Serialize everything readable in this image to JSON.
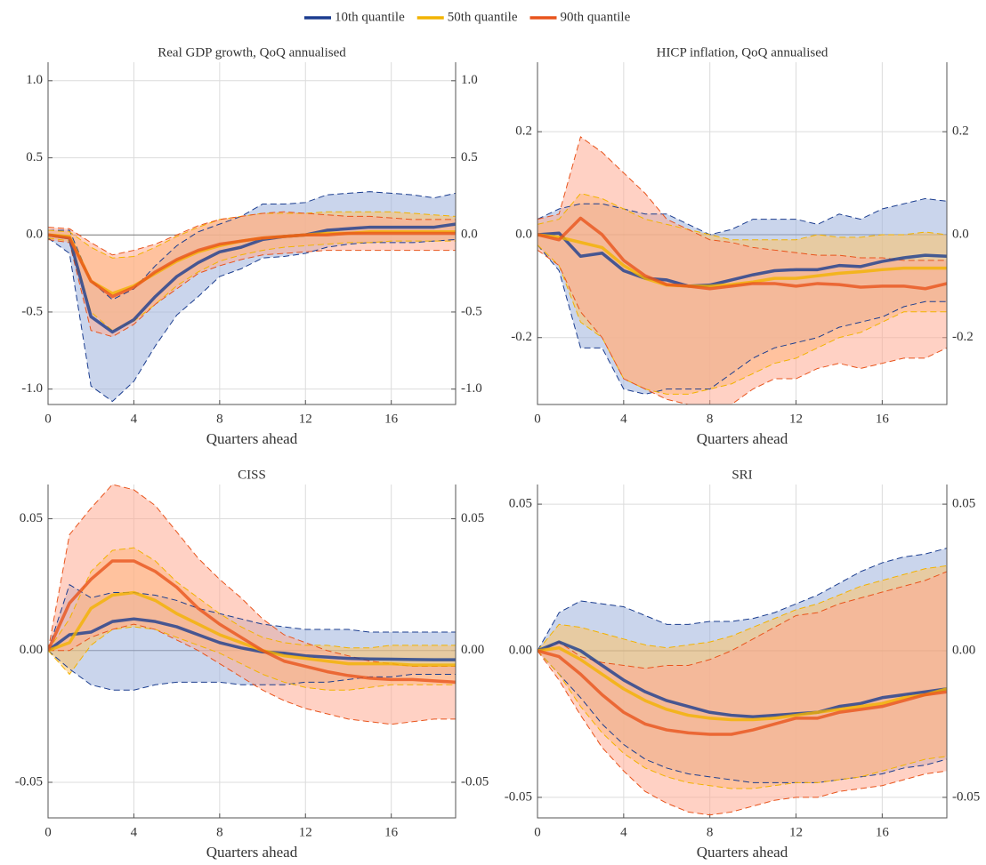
{
  "legend": [
    {
      "name": "10th quantile",
      "color": "#1b3d8f",
      "band_color": "#9fb3dd"
    },
    {
      "name": "50th quantile",
      "color": "#f2b300",
      "band_color": "#ffc266"
    },
    {
      "name": "90th quantile",
      "color": "#e8541c",
      "band_color": "#ffab94"
    }
  ],
  "chart_data": [
    {
      "type": "line",
      "title": "Real GDP growth, QoQ annualised",
      "x_label": "Quarters ahead",
      "x": [
        0,
        1,
        2,
        3,
        4,
        5,
        6,
        7,
        8,
        9,
        10,
        11,
        12,
        13,
        14,
        15,
        16,
        17,
        18,
        19
      ],
      "xlim": [
        0,
        19
      ],
      "xticks": [
        0,
        4,
        8,
        12,
        16
      ],
      "ylim": [
        -1.1,
        1.12
      ],
      "yticks": [
        {
          "value": 1,
          "label": "1.0"
        },
        0.5,
        {
          "value": 0,
          "label": "0.0"
        },
        -0.5,
        {
          "value": -1,
          "label": "-1.0"
        }
      ],
      "grid": true,
      "series": [
        {
          "values": [
            0,
            -0.02,
            -0.53,
            -0.63,
            -0.55,
            -0.4,
            -0.27,
            -0.18,
            -0.11,
            -0.08,
            -0.03,
            -0.01,
            0,
            0.03,
            0.04,
            0.05,
            0.05,
            0.05,
            0.05,
            0.07
          ],
          "lower": [
            -0.02,
            -0.12,
            -0.98,
            -1.08,
            -0.95,
            -0.72,
            -0.52,
            -0.4,
            -0.27,
            -0.22,
            -0.15,
            -0.14,
            -0.12,
            -0.08,
            -0.06,
            -0.05,
            -0.05,
            -0.05,
            -0.04,
            -0.03
          ],
          "upper": [
            0.03,
            0.03,
            -0.3,
            -0.42,
            -0.35,
            -0.2,
            -0.07,
            0.02,
            0.07,
            0.12,
            0.2,
            0.2,
            0.21,
            0.26,
            0.27,
            0.28,
            0.27,
            0.26,
            0.24,
            0.27
          ]
        },
        {
          "values": [
            0,
            -0.01,
            -0.3,
            -0.38,
            -0.33,
            -0.25,
            -0.17,
            -0.11,
            -0.07,
            -0.04,
            -0.02,
            -0.01,
            0,
            0.01,
            0.01,
            0.02,
            0.02,
            0.02,
            0.02,
            0.02
          ],
          "lower": [
            -0.02,
            -0.04,
            -0.5,
            -0.62,
            -0.56,
            -0.45,
            -0.33,
            -0.24,
            -0.17,
            -0.13,
            -0.1,
            -0.08,
            -0.07,
            -0.06,
            -0.05,
            -0.05,
            -0.04,
            -0.04,
            -0.04,
            -0.04
          ],
          "upper": [
            0.03,
            0.02,
            -0.08,
            -0.15,
            -0.14,
            -0.08,
            -0.01,
            0.05,
            0.1,
            0.12,
            0.14,
            0.14,
            0.14,
            0.15,
            0.15,
            0.15,
            0.15,
            0.14,
            0.13,
            0.12
          ]
        },
        {
          "values": [
            0,
            -0.02,
            -0.3,
            -0.4,
            -0.34,
            -0.24,
            -0.16,
            -0.1,
            -0.06,
            -0.04,
            -0.02,
            -0.01,
            0,
            0,
            0.01,
            0.01,
            0.01,
            0.01,
            0.01,
            0.01
          ],
          "lower": [
            -0.03,
            -0.05,
            -0.62,
            -0.66,
            -0.58,
            -0.45,
            -0.35,
            -0.25,
            -0.2,
            -0.16,
            -0.13,
            -0.12,
            -0.11,
            -0.1,
            -0.1,
            -0.1,
            -0.1,
            -0.1,
            -0.1,
            -0.1
          ],
          "upper": [
            0.05,
            0.04,
            -0.05,
            -0.13,
            -0.1,
            -0.06,
            0,
            0.06,
            0.1,
            0.12,
            0.14,
            0.15,
            0.14,
            0.13,
            0.12,
            0.12,
            0.11,
            0.1,
            0.1,
            0.1
          ]
        }
      ]
    },
    {
      "type": "line",
      "title": "HICP inflation, QoQ annualised",
      "x_label": "Quarters ahead",
      "x": [
        0,
        1,
        2,
        3,
        4,
        5,
        6,
        7,
        8,
        9,
        10,
        11,
        12,
        13,
        14,
        15,
        16,
        17,
        18,
        19
      ],
      "xlim": [
        0,
        19
      ],
      "xticks": [
        0,
        4,
        8,
        12,
        16
      ],
      "ylim": [
        -0.33,
        0.335
      ],
      "yticks": [
        0.2,
        {
          "value": 0,
          "label": "0.0"
        },
        -0.2
      ],
      "grid": true,
      "series": [
        {
          "values": [
            0,
            0.003,
            -0.042,
            -0.036,
            -0.07,
            -0.085,
            -0.088,
            -0.1,
            -0.098,
            -0.088,
            -0.078,
            -0.07,
            -0.068,
            -0.068,
            -0.06,
            -0.062,
            -0.052,
            -0.045,
            -0.04,
            -0.042
          ],
          "lower": [
            -0.02,
            -0.07,
            -0.22,
            -0.22,
            -0.3,
            -0.31,
            -0.3,
            -0.3,
            -0.3,
            -0.27,
            -0.24,
            -0.22,
            -0.21,
            -0.2,
            -0.18,
            -0.17,
            -0.16,
            -0.14,
            -0.13,
            -0.13
          ],
          "upper": [
            0.03,
            0.05,
            0.06,
            0.06,
            0.05,
            0.04,
            0.04,
            0.02,
            0,
            0.01,
            0.03,
            0.03,
            0.03,
            0.02,
            0.04,
            0.03,
            0.05,
            0.06,
            0.07,
            0.065
          ]
        },
        {
          "values": [
            0,
            -0.005,
            -0.015,
            -0.025,
            -0.06,
            -0.085,
            -0.098,
            -0.1,
            -0.1,
            -0.097,
            -0.092,
            -0.085,
            -0.085,
            -0.08,
            -0.075,
            -0.072,
            -0.068,
            -0.065,
            -0.065,
            -0.065
          ],
          "lower": [
            -0.02,
            -0.06,
            -0.17,
            -0.2,
            -0.28,
            -0.3,
            -0.31,
            -0.31,
            -0.3,
            -0.29,
            -0.27,
            -0.25,
            -0.24,
            -0.22,
            -0.2,
            -0.19,
            -0.17,
            -0.15,
            -0.15,
            -0.15
          ],
          "upper": [
            0.02,
            0.03,
            0.08,
            0.07,
            0.05,
            0.03,
            0.02,
            0.01,
            0,
            -0.01,
            -0.01,
            -0.01,
            -0.01,
            0,
            -0.005,
            -0.005,
            0,
            0,
            0.005,
            0
          ]
        },
        {
          "values": [
            0,
            -0.01,
            0.032,
            0,
            -0.05,
            -0.08,
            -0.097,
            -0.1,
            -0.105,
            -0.1,
            -0.095,
            -0.095,
            -0.1,
            -0.095,
            -0.097,
            -0.102,
            -0.1,
            -0.1,
            -0.105,
            -0.095
          ],
          "lower": [
            -0.03,
            -0.06,
            -0.15,
            -0.2,
            -0.28,
            -0.3,
            -0.32,
            -0.33,
            -0.33,
            -0.33,
            -0.3,
            -0.28,
            -0.28,
            -0.26,
            -0.25,
            -0.26,
            -0.25,
            -0.24,
            -0.24,
            -0.22
          ],
          "upper": [
            0.03,
            0.04,
            0.19,
            0.16,
            0.12,
            0.08,
            0.03,
            0.01,
            -0.01,
            -0.015,
            -0.025,
            -0.03,
            -0.035,
            -0.04,
            -0.04,
            -0.045,
            -0.045,
            -0.05,
            -0.05,
            -0.05
          ]
        }
      ]
    },
    {
      "type": "line",
      "title": "CISS",
      "x_label": "Quarters ahead",
      "x": [
        0,
        1,
        2,
        3,
        4,
        5,
        6,
        7,
        8,
        9,
        10,
        11,
        12,
        13,
        14,
        15,
        16,
        17,
        18,
        19
      ],
      "xlim": [
        0,
        19
      ],
      "xticks": [
        0,
        4,
        8,
        12,
        16
      ],
      "ylim": [
        -0.0635,
        0.063
      ],
      "yticks": [
        0.05,
        {
          "value": 0,
          "label": "0.00"
        },
        -0.05
      ],
      "grid": true,
      "series": [
        {
          "values": [
            0,
            0.006,
            0.007,
            0.011,
            0.012,
            0.011,
            0.009,
            0.006,
            0.003,
            0.001,
            -0.0005,
            -0.001,
            -0.002,
            -0.0025,
            -0.003,
            -0.0032,
            -0.0033,
            -0.0034,
            -0.0035,
            -0.0035
          ],
          "lower": [
            0,
            -0.007,
            -0.013,
            -0.015,
            -0.015,
            -0.013,
            -0.012,
            -0.012,
            -0.012,
            -0.013,
            -0.013,
            -0.013,
            -0.012,
            -0.012,
            -0.011,
            -0.01,
            -0.01,
            -0.009,
            -0.009,
            -0.009
          ],
          "upper": [
            0,
            0.025,
            0.02,
            0.022,
            0.022,
            0.021,
            0.019,
            0.016,
            0.014,
            0.012,
            0.01,
            0.009,
            0.008,
            0.008,
            0.008,
            0.007,
            0.007,
            0.007,
            0.007,
            0.007
          ]
        },
        {
          "values": [
            0,
            0.003,
            0.016,
            0.021,
            0.022,
            0.019,
            0.014,
            0.01,
            0.006,
            0.003,
            0,
            -0.002,
            -0.003,
            -0.004,
            -0.005,
            -0.005,
            -0.005,
            -0.0055,
            -0.0055,
            -0.0055
          ],
          "lower": [
            0,
            -0.009,
            0.002,
            0.008,
            0.009,
            0.008,
            0.005,
            0.002,
            -0.001,
            -0.005,
            -0.009,
            -0.012,
            -0.014,
            -0.015,
            -0.015,
            -0.014,
            -0.013,
            -0.013,
            -0.013,
            -0.013
          ],
          "upper": [
            0,
            0.012,
            0.03,
            0.038,
            0.039,
            0.034,
            0.026,
            0.02,
            0.014,
            0.009,
            0.005,
            0.003,
            0.002,
            0.002,
            0.001,
            0.001,
            0.002,
            0.002,
            0.002,
            0.002
          ]
        },
        {
          "values": [
            0,
            0.018,
            0.027,
            0.034,
            0.034,
            0.03,
            0.024,
            0.016,
            0.01,
            0.005,
            0,
            -0.004,
            -0.006,
            -0.008,
            -0.0095,
            -0.0105,
            -0.011,
            -0.011,
            -0.0115,
            -0.012
          ],
          "lower": [
            0,
            0,
            0.005,
            0.008,
            0.01,
            0.008,
            0.004,
            0,
            -0.005,
            -0.01,
            -0.015,
            -0.019,
            -0.022,
            -0.024,
            -0.026,
            -0.027,
            -0.028,
            -0.027,
            -0.026,
            -0.026
          ],
          "upper": [
            0,
            0.044,
            0.054,
            0.063,
            0.061,
            0.055,
            0.045,
            0.035,
            0.027,
            0.02,
            0.012,
            0.006,
            0.003,
            0,
            -0.002,
            -0.004,
            -0.005,
            -0.006,
            -0.006,
            -0.006
          ]
        }
      ]
    },
    {
      "type": "line",
      "title": "SRI",
      "x_label": "Quarters ahead",
      "x": [
        0,
        1,
        2,
        3,
        4,
        5,
        6,
        7,
        8,
        9,
        10,
        11,
        12,
        13,
        14,
        15,
        16,
        17,
        18,
        19
      ],
      "xlim": [
        0,
        19
      ],
      "xticks": [
        0,
        4,
        8,
        12,
        16
      ],
      "ylim": [
        -0.057,
        0.0567
      ],
      "yticks": [
        0.05,
        {
          "value": 0,
          "label": "0.00"
        },
        -0.05
      ],
      "grid": true,
      "series": [
        {
          "values": [
            0,
            0.003,
            0,
            -0.005,
            -0.01,
            -0.014,
            -0.017,
            -0.019,
            -0.021,
            -0.022,
            -0.0225,
            -0.022,
            -0.0215,
            -0.021,
            -0.019,
            -0.018,
            -0.016,
            -0.015,
            -0.014,
            -0.013
          ],
          "lower": [
            0,
            -0.008,
            -0.016,
            -0.025,
            -0.032,
            -0.037,
            -0.04,
            -0.042,
            -0.043,
            -0.044,
            -0.045,
            -0.045,
            -0.045,
            -0.045,
            -0.044,
            -0.043,
            -0.042,
            -0.04,
            -0.039,
            -0.037
          ],
          "upper": [
            0,
            0.013,
            0.017,
            0.016,
            0.015,
            0.012,
            0.009,
            0.009,
            0.01,
            0.01,
            0.011,
            0.013,
            0.016,
            0.019,
            0.023,
            0.027,
            0.03,
            0.032,
            0.033,
            0.035
          ]
        },
        {
          "values": [
            0,
            0.001,
            -0.003,
            -0.008,
            -0.013,
            -0.017,
            -0.02,
            -0.022,
            -0.023,
            -0.0235,
            -0.0235,
            -0.023,
            -0.022,
            -0.021,
            -0.02,
            -0.019,
            -0.018,
            -0.016,
            -0.015,
            -0.013
          ],
          "lower": [
            0,
            -0.008,
            -0.019,
            -0.028,
            -0.035,
            -0.04,
            -0.043,
            -0.045,
            -0.046,
            -0.047,
            -0.047,
            -0.046,
            -0.045,
            -0.045,
            -0.044,
            -0.043,
            -0.041,
            -0.039,
            -0.037,
            -0.036
          ],
          "upper": [
            0,
            0.009,
            0.008,
            0.006,
            0.004,
            0.002,
            0.001,
            0.002,
            0.003,
            0.005,
            0.008,
            0.011,
            0.014,
            0.016,
            0.019,
            0.022,
            0.024,
            0.026,
            0.028,
            0.029
          ]
        },
        {
          "values": [
            0,
            -0.002,
            -0.008,
            -0.015,
            -0.021,
            -0.025,
            -0.027,
            -0.028,
            -0.0285,
            -0.0285,
            -0.027,
            -0.025,
            -0.023,
            -0.023,
            -0.021,
            -0.02,
            -0.019,
            -0.017,
            -0.015,
            -0.014
          ],
          "lower": [
            0,
            -0.01,
            -0.022,
            -0.033,
            -0.041,
            -0.048,
            -0.052,
            -0.055,
            -0.056,
            -0.055,
            -0.053,
            -0.051,
            -0.05,
            -0.05,
            -0.048,
            -0.047,
            -0.046,
            -0.044,
            -0.042,
            -0.041
          ],
          "upper": [
            0,
            0.003,
            -0.002,
            -0.004,
            -0.005,
            -0.006,
            -0.005,
            -0.005,
            -0.003,
            0,
            0.004,
            0.008,
            0.012,
            0.013,
            0.016,
            0.018,
            0.02,
            0.022,
            0.024,
            0.027
          ]
        }
      ]
    }
  ]
}
